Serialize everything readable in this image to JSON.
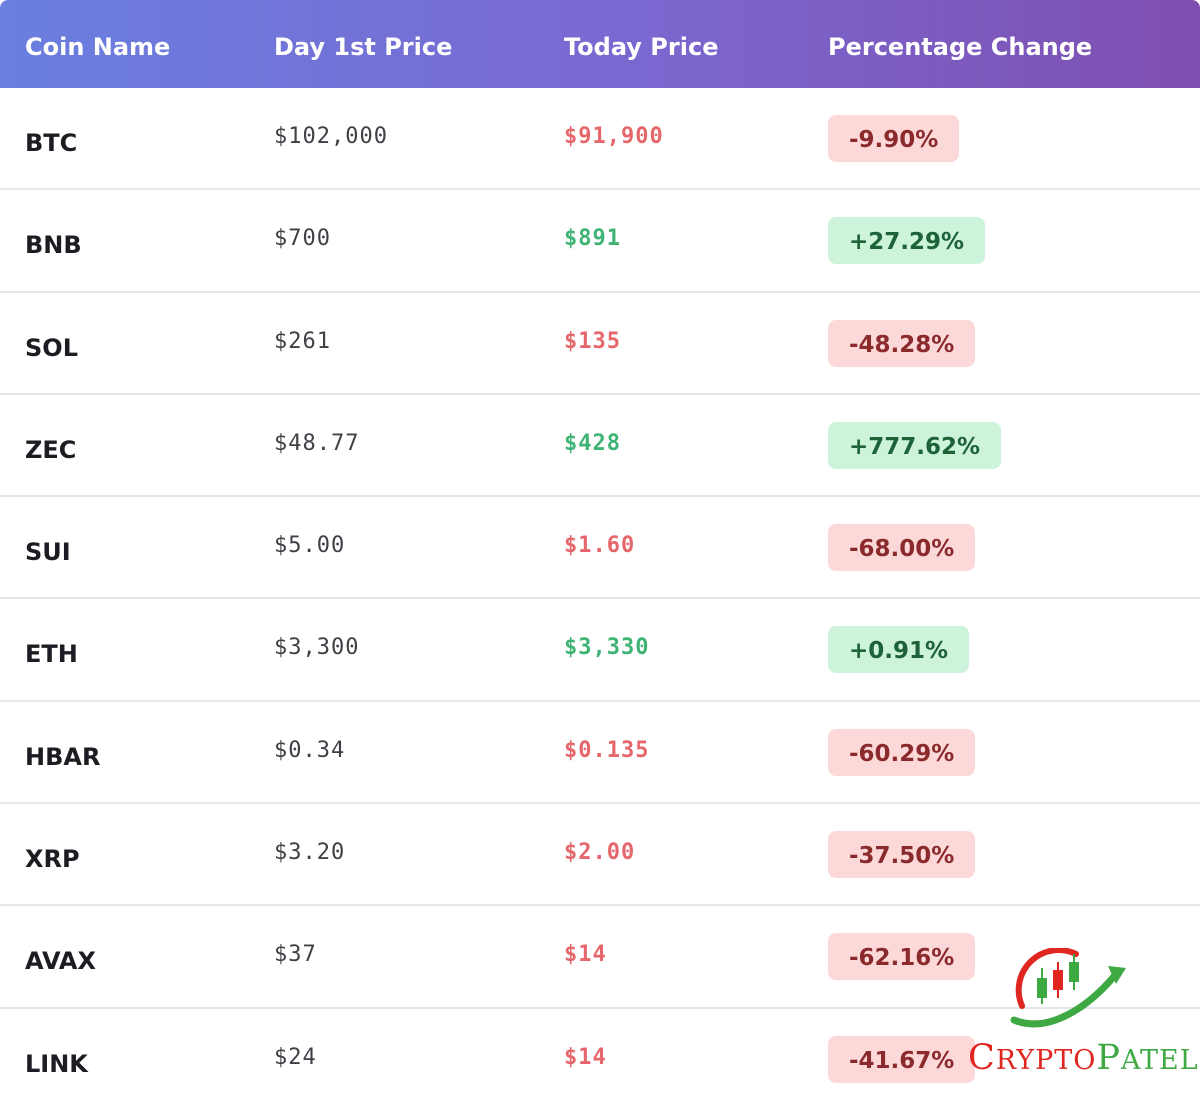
{
  "header": {
    "col_coin": "Coin Name",
    "col_day_first": "Day 1st Price",
    "col_today": "Today Price",
    "col_change": "Percentage Change"
  },
  "rows": [
    {
      "coin": "BTC",
      "day_first": "$102,000",
      "today": "$91,900",
      "change": "-9.90%",
      "direction": "down"
    },
    {
      "coin": "BNB",
      "day_first": "$700",
      "today": "$891",
      "change": "+27.29%",
      "direction": "up"
    },
    {
      "coin": "SOL",
      "day_first": "$261",
      "today": "$135",
      "change": "-48.28%",
      "direction": "down"
    },
    {
      "coin": "ZEC",
      "day_first": "$48.77",
      "today": "$428",
      "change": "+777.62%",
      "direction": "up"
    },
    {
      "coin": "SUI",
      "day_first": "$5.00",
      "today": "$1.60",
      "change": "-68.00%",
      "direction": "down"
    },
    {
      "coin": "ETH",
      "day_first": "$3,300",
      "today": "$3,330",
      "change": "+0.91%",
      "direction": "up"
    },
    {
      "coin": "HBAR",
      "day_first": "$0.34",
      "today": "$0.135",
      "change": "-60.29%",
      "direction": "down"
    },
    {
      "coin": "XRP",
      "day_first": "$3.20",
      "today": "$2.00",
      "change": "-37.50%",
      "direction": "down"
    },
    {
      "coin": "AVAX",
      "day_first": "$37",
      "today": "$14",
      "change": "-62.16%",
      "direction": "down"
    },
    {
      "coin": "LINK",
      "day_first": "$24",
      "today": "$14",
      "change": "-41.67%",
      "direction": "down"
    }
  ],
  "logo": {
    "first_initial": "C",
    "first_rest": "RYPTO",
    "second_initial": "P",
    "second_rest": "ATEL"
  },
  "colors": {
    "header_gradient_start": "#6a7fe0",
    "header_gradient_end": "#7e4fb0",
    "down_text": "#e5676b",
    "up_text": "#3fb374",
    "down_badge_bg": "#fdd8d8",
    "up_badge_bg": "#cdf3da"
  }
}
